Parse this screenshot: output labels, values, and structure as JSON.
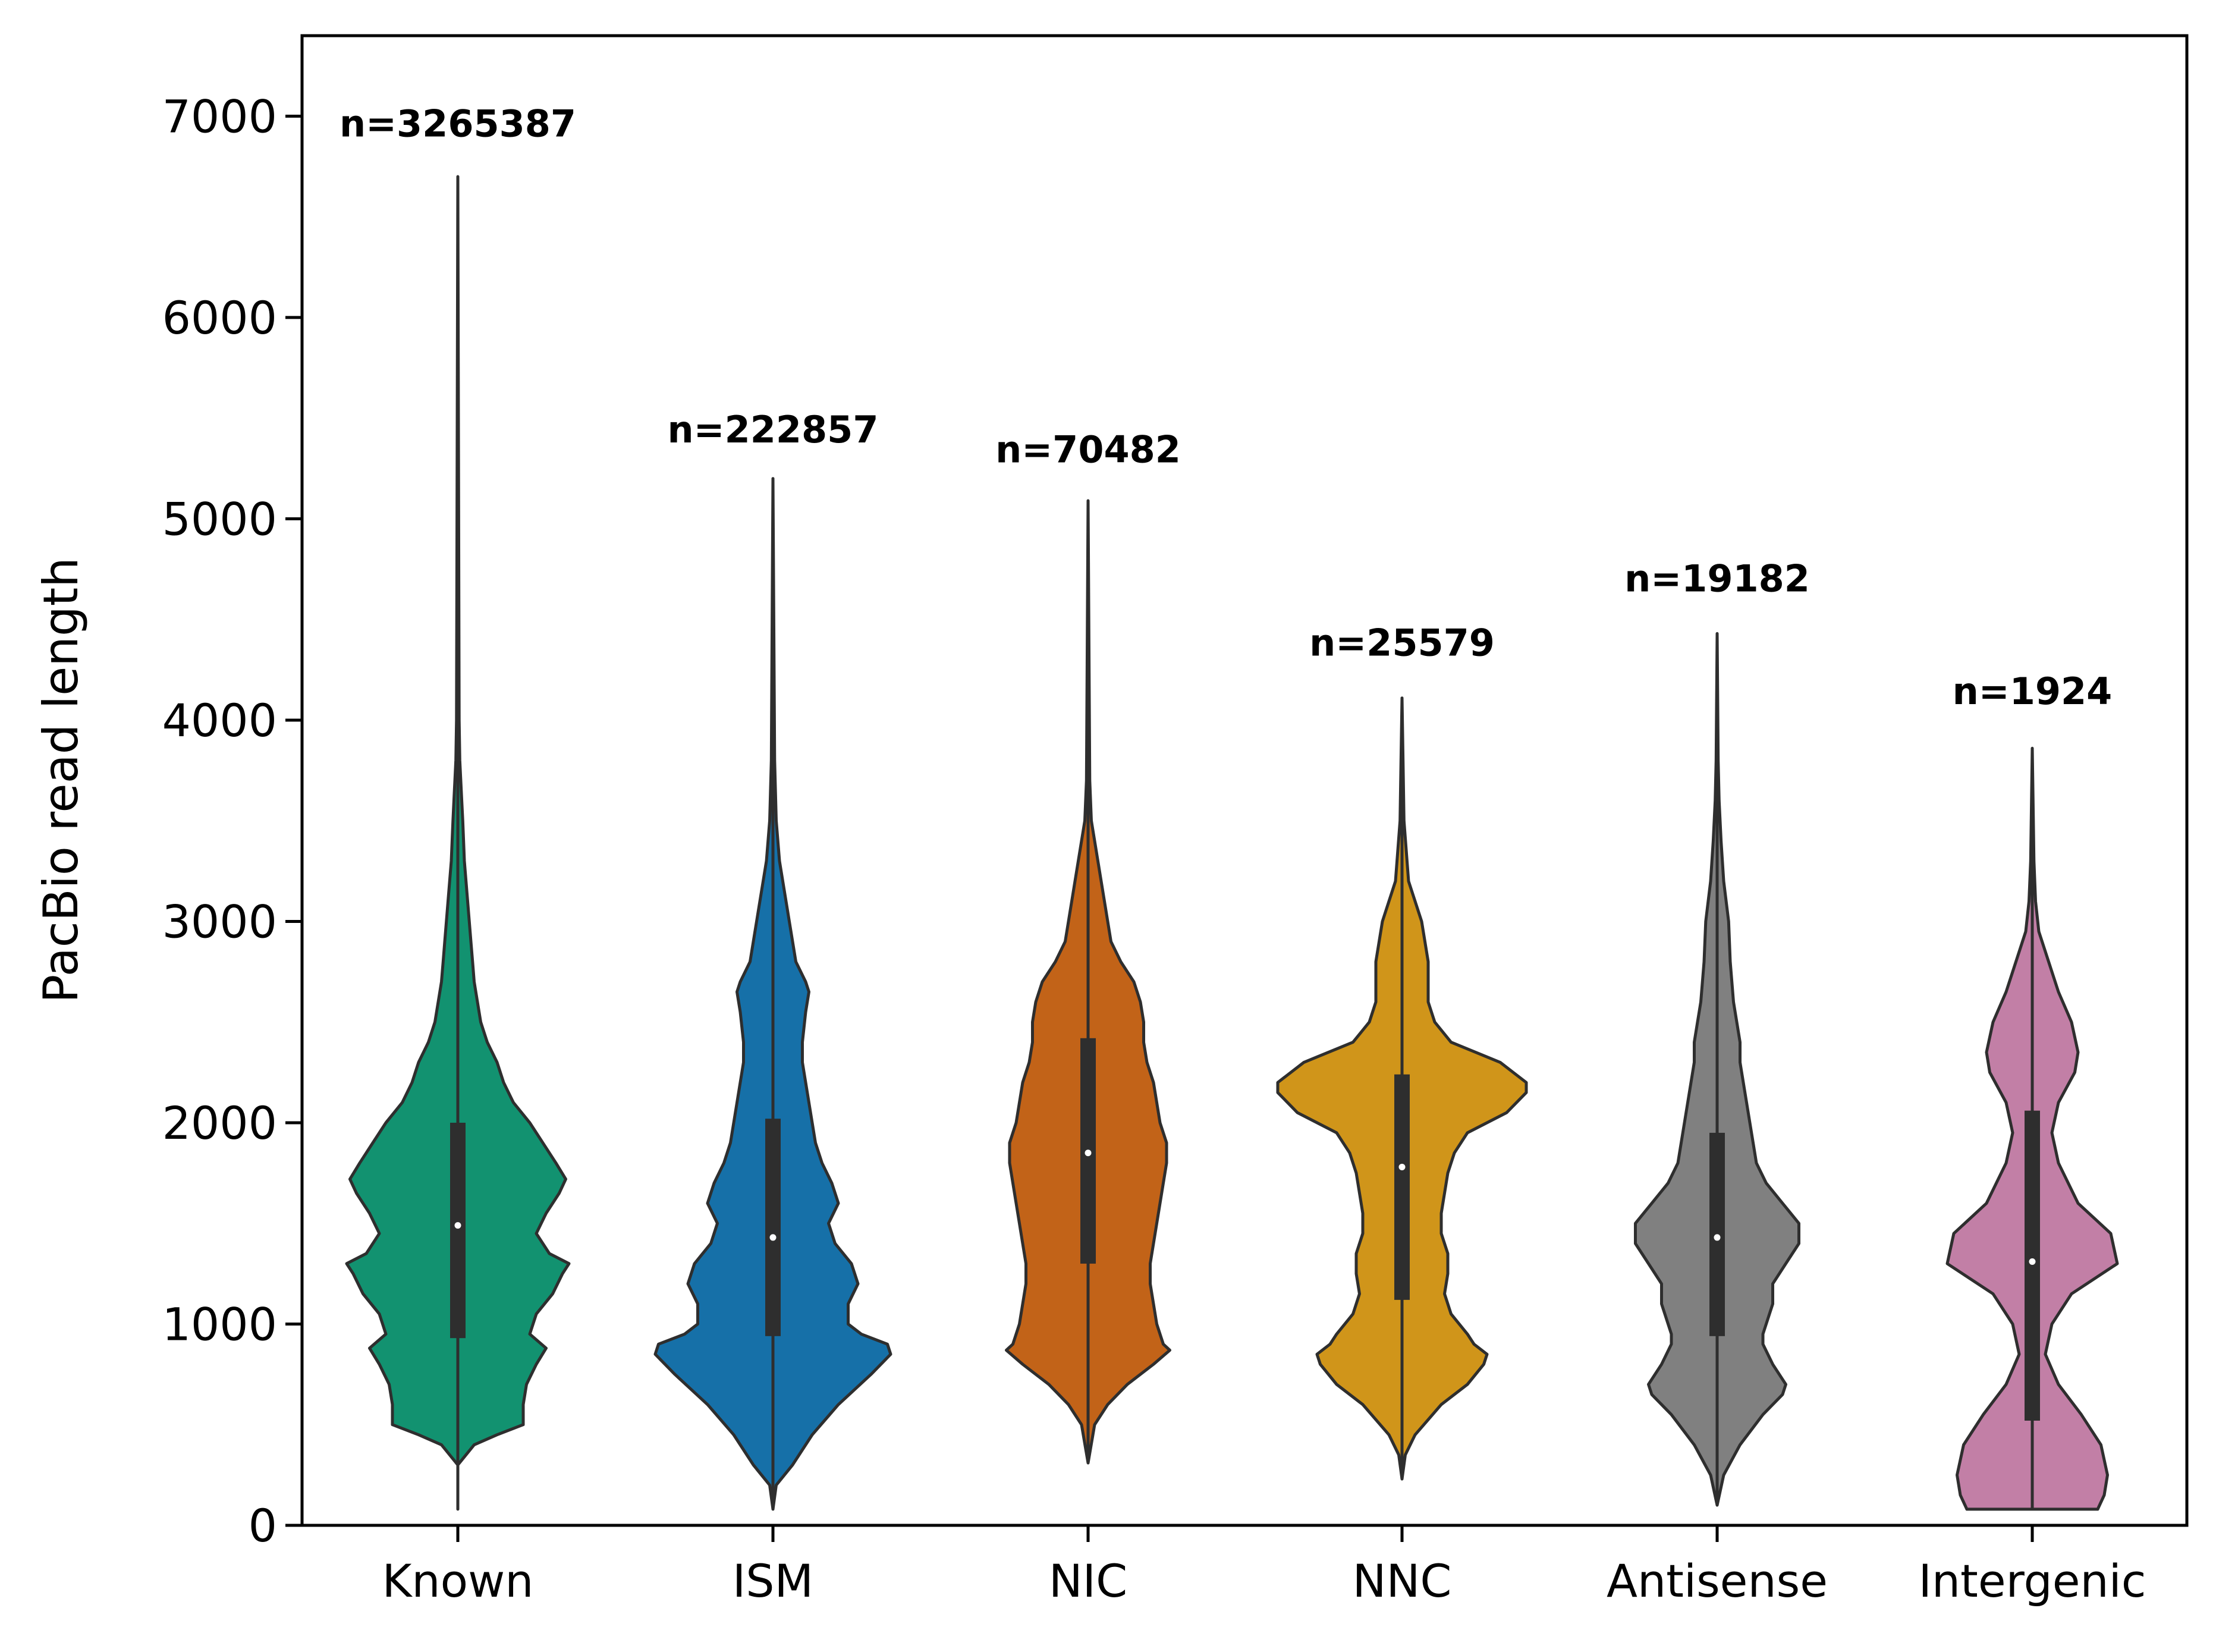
{
  "chart_data": {
    "type": "violin",
    "title": "",
    "xlabel": "",
    "ylabel": "PacBio read length",
    "ylim": [
      0,
      7400
    ],
    "yticks": [
      0,
      1000,
      2000,
      3000,
      4000,
      5000,
      6000,
      7000
    ],
    "ytick_labels": [
      "0",
      "1000",
      "2000",
      "3000",
      "4000",
      "5000",
      "6000",
      "7000"
    ],
    "grid": false,
    "legend": "none",
    "categories": [
      "Known",
      "ISM",
      "NIC",
      "NNC",
      "Antisense",
      "Intergenic"
    ],
    "n_labels": [
      "n=3265387",
      "n=222857",
      "n=70482",
      "n=25579",
      "n=19182",
      "n=1924"
    ],
    "n_label_y": [
      6900,
      5380,
      5280,
      4320,
      4640,
      4080
    ],
    "series": [
      {
        "category": "Known",
        "color": "#129270",
        "min": 80,
        "q1": 930,
        "median": 1490,
        "q3": 2000,
        "max": 6700,
        "profile": [
          [
            80,
            0
          ],
          [
            300,
            0
          ],
          [
            400,
            0.05
          ],
          [
            450,
            0.12
          ],
          [
            500,
            0.2
          ],
          [
            600,
            0.2
          ],
          [
            700,
            0.21
          ],
          [
            800,
            0.24
          ],
          [
            880,
            0.27
          ],
          [
            950,
            0.22
          ],
          [
            1050,
            0.24
          ],
          [
            1150,
            0.29
          ],
          [
            1250,
            0.32
          ],
          [
            1300,
            0.34
          ],
          [
            1350,
            0.28
          ],
          [
            1450,
            0.24
          ],
          [
            1550,
            0.27
          ],
          [
            1650,
            0.31
          ],
          [
            1720,
            0.33
          ],
          [
            1800,
            0.3
          ],
          [
            1900,
            0.26
          ],
          [
            2000,
            0.22
          ],
          [
            2100,
            0.17
          ],
          [
            2200,
            0.14
          ],
          [
            2300,
            0.12
          ],
          [
            2400,
            0.09
          ],
          [
            2500,
            0.07
          ],
          [
            2600,
            0.06
          ],
          [
            2700,
            0.05
          ],
          [
            2800,
            0.045
          ],
          [
            2900,
            0.04
          ],
          [
            3100,
            0.03
          ],
          [
            3300,
            0.02
          ],
          [
            3500,
            0.015
          ],
          [
            3600,
            0.012
          ],
          [
            3800,
            0.006
          ],
          [
            4000,
            0.004
          ],
          [
            6700,
            0
          ]
        ]
      },
      {
        "category": "ISM",
        "color": "#1670a8",
        "min": 80,
        "q1": 940,
        "median": 1430,
        "q3": 2020,
        "max": 5200,
        "profile": [
          [
            80,
            0
          ],
          [
            200,
            0.01
          ],
          [
            300,
            0.06
          ],
          [
            450,
            0.12
          ],
          [
            600,
            0.2
          ],
          [
            750,
            0.3
          ],
          [
            850,
            0.36
          ],
          [
            900,
            0.35
          ],
          [
            950,
            0.27
          ],
          [
            1000,
            0.23
          ],
          [
            1100,
            0.23
          ],
          [
            1200,
            0.26
          ],
          [
            1300,
            0.24
          ],
          [
            1400,
            0.19
          ],
          [
            1500,
            0.17
          ],
          [
            1600,
            0.2
          ],
          [
            1700,
            0.18
          ],
          [
            1800,
            0.15
          ],
          [
            1900,
            0.13
          ],
          [
            2000,
            0.12
          ],
          [
            2100,
            0.11
          ],
          [
            2200,
            0.1
          ],
          [
            2300,
            0.09
          ],
          [
            2400,
            0.09
          ],
          [
            2550,
            0.1
          ],
          [
            2650,
            0.11
          ],
          [
            2700,
            0.1
          ],
          [
            2800,
            0.07
          ],
          [
            2900,
            0.06
          ],
          [
            3000,
            0.05
          ],
          [
            3100,
            0.04
          ],
          [
            3300,
            0.02
          ],
          [
            3500,
            0.01
          ],
          [
            3800,
            0.005
          ],
          [
            5200,
            0
          ]
        ]
      },
      {
        "category": "NIC",
        "color": "#c26318",
        "min": 310,
        "q1": 1300,
        "median": 1850,
        "q3": 2420,
        "max": 5090,
        "profile": [
          [
            310,
            0
          ],
          [
            500,
            0.02
          ],
          [
            600,
            0.06
          ],
          [
            700,
            0.12
          ],
          [
            800,
            0.2
          ],
          [
            870,
            0.25
          ],
          [
            900,
            0.23
          ],
          [
            1000,
            0.21
          ],
          [
            1100,
            0.2
          ],
          [
            1200,
            0.19
          ],
          [
            1300,
            0.19
          ],
          [
            1400,
            0.2
          ],
          [
            1500,
            0.21
          ],
          [
            1600,
            0.22
          ],
          [
            1700,
            0.23
          ],
          [
            1800,
            0.24
          ],
          [
            1900,
            0.24
          ],
          [
            2000,
            0.22
          ],
          [
            2100,
            0.21
          ],
          [
            2200,
            0.2
          ],
          [
            2300,
            0.18
          ],
          [
            2400,
            0.17
          ],
          [
            2500,
            0.17
          ],
          [
            2600,
            0.16
          ],
          [
            2700,
            0.14
          ],
          [
            2800,
            0.1
          ],
          [
            2900,
            0.07
          ],
          [
            3000,
            0.06
          ],
          [
            3100,
            0.05
          ],
          [
            3300,
            0.03
          ],
          [
            3500,
            0.01
          ],
          [
            3700,
            0.005
          ],
          [
            5090,
            0
          ]
        ]
      },
      {
        "category": "NNC",
        "color": "#d0951a",
        "min": 230,
        "q1": 1120,
        "median": 1780,
        "q3": 2240,
        "max": 4110,
        "profile": [
          [
            230,
            0
          ],
          [
            350,
            0.01
          ],
          [
            450,
            0.04
          ],
          [
            600,
            0.12
          ],
          [
            700,
            0.2
          ],
          [
            800,
            0.25
          ],
          [
            850,
            0.26
          ],
          [
            900,
            0.22
          ],
          [
            950,
            0.2
          ],
          [
            1050,
            0.15
          ],
          [
            1150,
            0.13
          ],
          [
            1250,
            0.14
          ],
          [
            1350,
            0.14
          ],
          [
            1450,
            0.12
          ],
          [
            1550,
            0.12
          ],
          [
            1650,
            0.13
          ],
          [
            1750,
            0.14
          ],
          [
            1850,
            0.16
          ],
          [
            1950,
            0.2
          ],
          [
            2050,
            0.32
          ],
          [
            2150,
            0.38
          ],
          [
            2200,
            0.38
          ],
          [
            2300,
            0.3
          ],
          [
            2400,
            0.15
          ],
          [
            2500,
            0.1
          ],
          [
            2600,
            0.08
          ],
          [
            2700,
            0.08
          ],
          [
            2800,
            0.08
          ],
          [
            2900,
            0.07
          ],
          [
            3000,
            0.06
          ],
          [
            3100,
            0.04
          ],
          [
            3200,
            0.02
          ],
          [
            3500,
            0.006
          ],
          [
            3800,
            0.003
          ],
          [
            4110,
            0
          ]
        ]
      },
      {
        "category": "Antisense",
        "color": "#808080",
        "min": 100,
        "q1": 940,
        "median": 1430,
        "q3": 1950,
        "max": 4430,
        "profile": [
          [
            100,
            0
          ],
          [
            250,
            0.02
          ],
          [
            400,
            0.07
          ],
          [
            550,
            0.14
          ],
          [
            650,
            0.2
          ],
          [
            700,
            0.21
          ],
          [
            800,
            0.17
          ],
          [
            900,
            0.14
          ],
          [
            950,
            0.14
          ],
          [
            1100,
            0.17
          ],
          [
            1200,
            0.17
          ],
          [
            1300,
            0.21
          ],
          [
            1400,
            0.25
          ],
          [
            1500,
            0.25
          ],
          [
            1600,
            0.2
          ],
          [
            1700,
            0.15
          ],
          [
            1800,
            0.12
          ],
          [
            1900,
            0.11
          ],
          [
            2000,
            0.1
          ],
          [
            2100,
            0.09
          ],
          [
            2200,
            0.08
          ],
          [
            2300,
            0.07
          ],
          [
            2400,
            0.07
          ],
          [
            2500,
            0.06
          ],
          [
            2600,
            0.05
          ],
          [
            2800,
            0.04
          ],
          [
            3000,
            0.035
          ],
          [
            3200,
            0.02
          ],
          [
            3400,
            0.012
          ],
          [
            3600,
            0.006
          ],
          [
            3800,
            0.003
          ],
          [
            4430,
            0
          ]
        ]
      },
      {
        "category": "Intergenic",
        "color": "#c27fa6",
        "min": 80,
        "q1": 520,
        "median": 1310,
        "q3": 2060,
        "max": 3860,
        "profile": [
          [
            80,
            0.045
          ],
          [
            80,
            0.2
          ],
          [
            150,
            0.22
          ],
          [
            250,
            0.23
          ],
          [
            400,
            0.21
          ],
          [
            550,
            0.15
          ],
          [
            700,
            0.08
          ],
          [
            850,
            0.04
          ],
          [
            1000,
            0.06
          ],
          [
            1150,
            0.12
          ],
          [
            1300,
            0.26
          ],
          [
            1450,
            0.24
          ],
          [
            1600,
            0.14
          ],
          [
            1800,
            0.08
          ],
          [
            1950,
            0.06
          ],
          [
            2100,
            0.08
          ],
          [
            2250,
            0.13
          ],
          [
            2350,
            0.14
          ],
          [
            2500,
            0.12
          ],
          [
            2650,
            0.08
          ],
          [
            2800,
            0.05
          ],
          [
            2950,
            0.02
          ],
          [
            3100,
            0.01
          ],
          [
            3300,
            0.005
          ],
          [
            3860,
            0
          ]
        ]
      }
    ]
  }
}
